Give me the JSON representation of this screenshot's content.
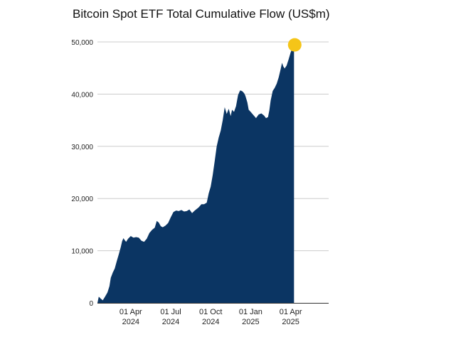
{
  "chart_data": {
    "type": "area",
    "title": "Bitcoin Spot ETF Total Cumulative Flow (US$m)",
    "xlabel": "",
    "ylabel": "",
    "ylim": [
      0,
      50000
    ],
    "yticks": [
      {
        "value": 0,
        "label": "0"
      },
      {
        "value": 10000,
        "label": "10,000"
      },
      {
        "value": 20000,
        "label": "20,000"
      },
      {
        "value": 30000,
        "label": "30,000"
      },
      {
        "value": 40000,
        "label": "40,000"
      },
      {
        "value": 50000,
        "label": "50,000"
      }
    ],
    "xticks": [
      {
        "month": 2.5,
        "line1": "01 Apr",
        "line2": "2024"
      },
      {
        "month": 5.5,
        "line1": "01 Jul",
        "line2": "2024"
      },
      {
        "month": 8.5,
        "line1": "01 Oct",
        "line2": "2024"
      },
      {
        "month": 11.5,
        "line1": "01 Jan",
        "line2": "2025"
      },
      {
        "month": 14.5,
        "line1": "01 Apr",
        "line2": "2025"
      }
    ],
    "xlim": [
      0,
      17.35
    ],
    "grid": true,
    "accent_color": "#0b3563",
    "marker_color": "#f5c518",
    "series": [
      {
        "name": "Total Cumulative Flow",
        "points": [
          [
            0.0,
            0
          ],
          [
            0.1,
            1200
          ],
          [
            0.25,
            800
          ],
          [
            0.4,
            500
          ],
          [
            0.55,
            1100
          ],
          [
            0.75,
            2000
          ],
          [
            0.9,
            3200
          ],
          [
            1.0,
            4800
          ],
          [
            1.15,
            5800
          ],
          [
            1.3,
            6600
          ],
          [
            1.45,
            8000
          ],
          [
            1.6,
            9300
          ],
          [
            1.75,
            10700
          ],
          [
            1.85,
            11800
          ],
          [
            1.95,
            12400
          ],
          [
            2.05,
            12000
          ],
          [
            2.15,
            11700
          ],
          [
            2.3,
            12300
          ],
          [
            2.5,
            12800
          ],
          [
            2.7,
            12500
          ],
          [
            2.9,
            12600
          ],
          [
            3.1,
            12500
          ],
          [
            3.3,
            11900
          ],
          [
            3.5,
            11700
          ],
          [
            3.7,
            12300
          ],
          [
            3.9,
            13400
          ],
          [
            4.1,
            14000
          ],
          [
            4.3,
            14400
          ],
          [
            4.45,
            15700
          ],
          [
            4.6,
            15400
          ],
          [
            4.75,
            14700
          ],
          [
            4.9,
            14500
          ],
          [
            5.1,
            14800
          ],
          [
            5.3,
            15300
          ],
          [
            5.5,
            16400
          ],
          [
            5.7,
            17400
          ],
          [
            5.9,
            17700
          ],
          [
            6.1,
            17600
          ],
          [
            6.3,
            17800
          ],
          [
            6.5,
            17500
          ],
          [
            6.7,
            17600
          ],
          [
            6.9,
            17900
          ],
          [
            7.1,
            17200
          ],
          [
            7.3,
            17700
          ],
          [
            7.6,
            18300
          ],
          [
            7.8,
            18900
          ],
          [
            8.0,
            18900
          ],
          [
            8.2,
            19200
          ],
          [
            8.35,
            21000
          ],
          [
            8.5,
            22300
          ],
          [
            8.65,
            24500
          ],
          [
            8.8,
            27200
          ],
          [
            8.95,
            30000
          ],
          [
            9.1,
            31700
          ],
          [
            9.25,
            33000
          ],
          [
            9.4,
            35000
          ],
          [
            9.55,
            37500
          ],
          [
            9.7,
            36200
          ],
          [
            9.85,
            37200
          ],
          [
            10.0,
            35800
          ],
          [
            10.1,
            37000
          ],
          [
            10.25,
            36600
          ],
          [
            10.4,
            37700
          ],
          [
            10.55,
            39800
          ],
          [
            10.7,
            40700
          ],
          [
            10.85,
            40600
          ],
          [
            11.0,
            40200
          ],
          [
            11.1,
            39700
          ],
          [
            11.25,
            38400
          ],
          [
            11.35,
            37000
          ],
          [
            11.5,
            36600
          ],
          [
            11.7,
            36000
          ],
          [
            11.9,
            35400
          ],
          [
            12.1,
            36100
          ],
          [
            12.3,
            36300
          ],
          [
            12.5,
            35900
          ],
          [
            12.65,
            35400
          ],
          [
            12.8,
            35600
          ],
          [
            12.9,
            36900
          ],
          [
            13.0,
            38800
          ],
          [
            13.15,
            40600
          ],
          [
            13.3,
            41200
          ],
          [
            13.45,
            42000
          ],
          [
            13.6,
            43200
          ],
          [
            13.75,
            44800
          ],
          [
            13.85,
            46000
          ],
          [
            13.95,
            45300
          ],
          [
            14.05,
            44900
          ],
          [
            14.2,
            45500
          ],
          [
            14.35,
            46700
          ],
          [
            14.5,
            48000
          ],
          [
            14.65,
            49000
          ],
          [
            14.75,
            49300
          ]
        ]
      }
    ]
  }
}
